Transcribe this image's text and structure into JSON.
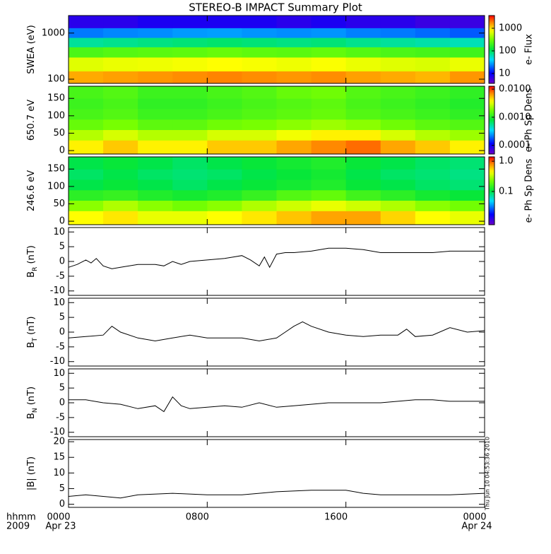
{
  "title": "STEREO-B IMPACT Summary Plot",
  "timestamp": "Thu Jun 10 04:53:36 2010",
  "x_axis": {
    "xlim": [
      0,
      24
    ],
    "xticks": [
      {
        "value": 0,
        "label": "0000"
      },
      {
        "value": 8,
        "label": "0800"
      },
      {
        "value": 16,
        "label": "1600"
      },
      {
        "value": 24,
        "label": "0000"
      }
    ],
    "xdates": [
      "Apr 23",
      null,
      null,
      "Apr 24"
    ],
    "xlabel": [
      "hhmm",
      "2009"
    ]
  },
  "chart_data": [
    {
      "type": "heatmap",
      "ylabel": [
        "SWEA (eV)"
      ],
      "ylog": true,
      "ylim": [
        81,
        2400
      ],
      "yticks": [
        100,
        1000
      ],
      "colorbar_label": "e- Flux",
      "colormap": "rainbow",
      "clim": [
        3.65,
        3650
      ],
      "clog": true,
      "cticks": [
        10,
        100,
        1000
      ],
      "x_edges": [
        0,
        2,
        4,
        6,
        8,
        10,
        12,
        14,
        16,
        18,
        20,
        22,
        24
      ],
      "y_edges": [
        81,
        150,
        300,
        500,
        800,
        1300,
        2400
      ],
      "z": [
        [
          1400,
          1500,
          1600,
          1700,
          1800,
          1700,
          1600,
          1700,
          1500,
          1400,
          1300,
          1600
        ],
        [
          650,
          700,
          720,
          750,
          800,
          760,
          720,
          780,
          700,
          650,
          620,
          700
        ],
        [
          220,
          240,
          250,
          260,
          280,
          260,
          250,
          270,
          240,
          220,
          210,
          200
        ],
        [
          70,
          75,
          80,
          85,
          90,
          85,
          80,
          85,
          75,
          70,
          65,
          60
        ],
        [
          22,
          24,
          25,
          27,
          28,
          26,
          25,
          26,
          23,
          22,
          20,
          18
        ],
        [
          7,
          7,
          8,
          8,
          8,
          8,
          7,
          8,
          7,
          7,
          6,
          6
        ]
      ]
    },
    {
      "type": "heatmap",
      "ylabel": [
        "650.7 eV"
      ],
      "ylog": false,
      "ylim": [
        -10,
        185
      ],
      "yticks": [
        0,
        50,
        100,
        150
      ],
      "colorbar_label": "e- Ph Sp Dens",
      "colormap": "rainbow",
      "clim": [
        4.9e-05,
        0.0127
      ],
      "clog": true,
      "cticks": [
        {
          "value": 0.0001,
          "label": "0.0001"
        },
        {
          "value": 0.001,
          "label": "0.0010"
        },
        {
          "value": 0.01,
          "label": "0.0100"
        }
      ],
      "x_edges": [
        0,
        2,
        4,
        6,
        8,
        10,
        12,
        14,
        16,
        18,
        20,
        22,
        24
      ],
      "y_edges": [
        -10,
        30,
        60,
        90,
        120,
        150,
        185
      ],
      "z": [
        [
          0.004,
          0.005,
          0.004,
          0.004,
          0.005,
          0.005,
          0.006,
          0.007,
          0.008,
          0.006,
          0.005,
          0.004
        ],
        [
          0.0025,
          0.003,
          0.0025,
          0.0025,
          0.003,
          0.003,
          0.0035,
          0.004,
          0.004,
          0.003,
          0.0025,
          0.0022
        ],
        [
          0.0016,
          0.0018,
          0.0015,
          0.0015,
          0.0017,
          0.0018,
          0.002,
          0.0022,
          0.002,
          0.0017,
          0.0015,
          0.0014
        ],
        [
          0.0013,
          0.0014,
          0.0012,
          0.0012,
          0.0013,
          0.0014,
          0.0015,
          0.0016,
          0.0014,
          0.0013,
          0.0012,
          0.0011
        ],
        [
          0.0012,
          0.0013,
          0.0011,
          0.0011,
          0.0012,
          0.0013,
          0.0014,
          0.0015,
          0.0013,
          0.0012,
          0.0011,
          0.001
        ],
        [
          0.0013,
          0.0014,
          0.0012,
          0.0012,
          0.0013,
          0.0014,
          0.0016,
          0.0017,
          0.0014,
          0.0013,
          0.0012,
          0.0011
        ]
      ]
    },
    {
      "type": "heatmap",
      "ylabel": [
        "246.6 eV"
      ],
      "ylog": false,
      "ylim": [
        -10,
        185
      ],
      "yticks": [
        0,
        50,
        100,
        150
      ],
      "colorbar_label": "e- Ph Sp Dens",
      "colormap": "rainbow",
      "clim": [
        0.008,
        1.39
      ],
      "clog": true,
      "cticks": [
        0.1,
        {
          "value": 1,
          "label": "1.0"
        }
      ],
      "x_edges": [
        0,
        2,
        4,
        6,
        8,
        10,
        12,
        14,
        16,
        18,
        20,
        22,
        24
      ],
      "y_edges": [
        -10,
        30,
        60,
        90,
        120,
        150,
        185
      ],
      "z": [
        [
          0.45,
          0.5,
          0.4,
          0.4,
          0.45,
          0.5,
          0.6,
          0.7,
          0.7,
          0.55,
          0.45,
          0.4
        ],
        [
          0.25,
          0.3,
          0.25,
          0.22,
          0.25,
          0.3,
          0.35,
          0.4,
          0.35,
          0.3,
          0.25,
          0.22
        ],
        [
          0.14,
          0.15,
          0.13,
          0.12,
          0.13,
          0.15,
          0.18,
          0.2,
          0.16,
          0.14,
          0.12,
          0.11
        ],
        [
          0.1,
          0.11,
          0.1,
          0.09,
          0.1,
          0.11,
          0.12,
          0.13,
          0.11,
          0.1,
          0.09,
          0.085
        ],
        [
          0.09,
          0.1,
          0.09,
          0.085,
          0.09,
          0.1,
          0.11,
          0.12,
          0.1,
          0.09,
          0.085,
          0.08
        ],
        [
          0.1,
          0.11,
          0.1,
          0.09,
          0.1,
          0.11,
          0.12,
          0.13,
          0.11,
          0.1,
          0.09,
          0.085
        ]
      ]
    },
    {
      "type": "line",
      "ylabel": [
        "B",
        "R",
        " (nT)"
      ],
      "ylim": [
        -11.5,
        11.5
      ],
      "yticks": [
        -10,
        -5,
        0,
        5,
        10
      ],
      "color": "#000000",
      "x": [
        0,
        0.5,
        1,
        1.3,
        1.6,
        2,
        2.5,
        3,
        4,
        5,
        5.5,
        6,
        6.5,
        7,
        8,
        9,
        9.5,
        10,
        10.5,
        11,
        11.3,
        11.6,
        12,
        12.5,
        13,
        14,
        15,
        16,
        17,
        18,
        19,
        20,
        21,
        22,
        23,
        24
      ],
      "values": [
        -2,
        -1,
        0.5,
        -0.5,
        1,
        -1.5,
        -2.5,
        -2,
        -1,
        -1,
        -1.5,
        0,
        -1,
        0,
        0.5,
        1,
        1.5,
        2,
        0.5,
        -1.5,
        1.5,
        -2,
        2.5,
        3,
        3,
        3.5,
        4.5,
        4.5,
        4,
        3,
        3,
        3,
        3,
        3.5,
        3.5,
        3.5
      ]
    },
    {
      "type": "line",
      "ylabel": [
        "B",
        "T",
        " (nT)"
      ],
      "ylim": [
        -11.5,
        11.5
      ],
      "yticks": [
        -10,
        -5,
        0,
        5,
        10
      ],
      "color": "#000000",
      "x": [
        0,
        1,
        2,
        2.5,
        3,
        4,
        5,
        6,
        7,
        8,
        9,
        10,
        11,
        12,
        12.5,
        13,
        13.5,
        14,
        15,
        16,
        17,
        18,
        19,
        19.5,
        20,
        21,
        22,
        23,
        24
      ],
      "values": [
        -2,
        -1.5,
        -1,
        2,
        0,
        -2,
        -3,
        -2,
        -1,
        -2,
        -2,
        -2,
        -3,
        -2,
        0,
        2,
        3.5,
        2,
        0,
        -1,
        -1.5,
        -1,
        -1,
        1,
        -1.5,
        -1,
        1.5,
        0,
        0.5
      ]
    },
    {
      "type": "line",
      "ylabel": [
        "B",
        "N",
        " (nT)"
      ],
      "ylim": [
        -11.5,
        11.5
      ],
      "yticks": [
        -10,
        -5,
        0,
        5,
        10
      ],
      "color": "#000000",
      "x": [
        0,
        1,
        2,
        3,
        4,
        5,
        5.5,
        6,
        6.5,
        7,
        8,
        9,
        10,
        11,
        12,
        13,
        14,
        15,
        16,
        17,
        18,
        19,
        20,
        21,
        22,
        23,
        24
      ],
      "values": [
        1,
        1,
        0,
        -0.5,
        -2,
        -1,
        -3,
        2,
        -1,
        -2,
        -1.5,
        -1,
        -1.5,
        0,
        -1.5,
        -1,
        -0.5,
        0,
        0,
        0,
        0,
        0.5,
        1,
        1,
        0.5,
        0.5,
        0.5
      ]
    },
    {
      "type": "line",
      "ylabel": [
        "|B| (nT)"
      ],
      "ylim": [
        -1,
        20.7
      ],
      "yticks": [
        0,
        5,
        10,
        15,
        20
      ],
      "color": "#000000",
      "x": [
        0,
        1,
        2,
        3,
        4,
        6,
        8,
        10,
        11,
        12,
        14,
        16,
        17,
        18,
        20,
        22,
        24
      ],
      "values": [
        2.5,
        3,
        2.5,
        2,
        3,
        3.5,
        3,
        3,
        3.5,
        4,
        4.5,
        4.5,
        3.5,
        3,
        3,
        3,
        3.5
      ]
    }
  ]
}
